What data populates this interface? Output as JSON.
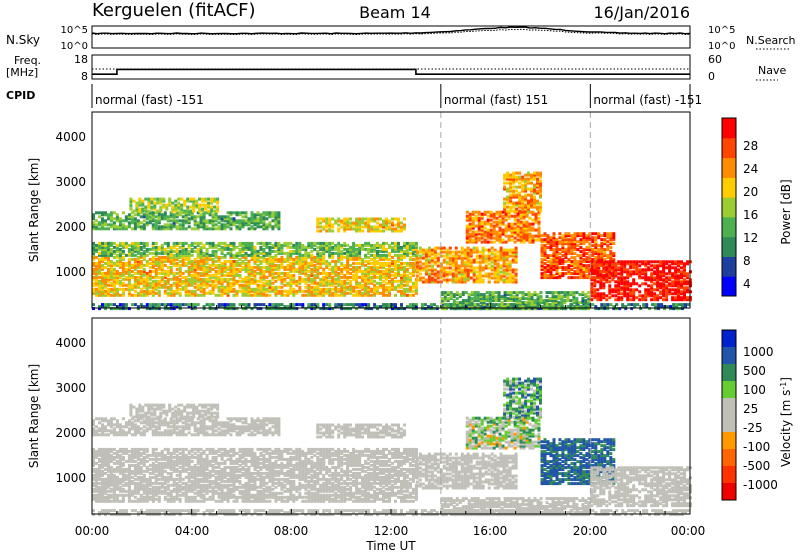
{
  "header": {
    "station": "Kerguelen (fitACF)",
    "beam": "Beam 14",
    "date": "16/Jan/2016"
  },
  "sky_panel": {
    "left_label": "N.Sky",
    "left_ticks": [
      "10^5",
      "10^0"
    ],
    "right_ticks": [
      "10^5",
      "10^0"
    ],
    "right_label": "N.Search"
  },
  "freq_panel": {
    "left_label_1": "Freq.",
    "left_label_2": "[MHz]",
    "left_ticks": [
      "18",
      "8"
    ],
    "right_ticks": [
      "60",
      "0"
    ],
    "right_label": "Nave"
  },
  "cpid_panel": {
    "label": "CPID",
    "segments": [
      {
        "label": "normal (fast) -151",
        "start_h": 0,
        "end_h": 14
      },
      {
        "label": "normal (fast) 151",
        "start_h": 14,
        "end_h": 20
      },
      {
        "label": "normal (fast) -151",
        "start_h": 20,
        "end_h": 24
      }
    ]
  },
  "power_panel": {
    "ylabel": "Slant Range [km]",
    "yticks": [
      "4000",
      "3000",
      "2000",
      "1000"
    ],
    "colorbar_label": "Power [dB]",
    "colorbar_ticks": [
      "28",
      "24",
      "20",
      "16",
      "12",
      "8",
      "4"
    ]
  },
  "velocity_panel": {
    "ylabel": "Slant Range [km]",
    "yticks": [
      "4000",
      "3000",
      "2000",
      "1000"
    ],
    "colorbar_label": "Velocity [m s",
    "colorbar_label_sup": "-1",
    "colorbar_label_end": "]",
    "colorbar_ticks": [
      "1000",
      "500",
      "100",
      "25",
      "-25",
      "-100",
      "-500",
      "-1000"
    ]
  },
  "x_axis": {
    "label": "Time UT",
    "ticks": [
      "00:00",
      "04:00",
      "08:00",
      "12:00",
      "16:00",
      "20:00",
      "00:00"
    ]
  },
  "colors": {
    "power_scale": [
      "#0000ff",
      "#1f3f9f",
      "#2e8b57",
      "#4caf50",
      "#9acd32",
      "#ffcc00",
      "#ff8c00",
      "#ff4500",
      "#ff0000"
    ],
    "velocity_scale": [
      "#0022cc",
      "#2255aa",
      "#2e8b57",
      "#66cc33",
      "#c0c0b8",
      "#c0c0b8",
      "#ff9900",
      "#ff6600",
      "#ff3300",
      "#ee0000"
    ]
  },
  "chart_data": {
    "type": "heatmap",
    "x_range_hours": [
      0,
      24
    ],
    "y_range_km": [
      180,
      4600
    ],
    "power_range_db": [
      0,
      32
    ],
    "velocity_range_ms": [
      -1200,
      1200
    ],
    "freq_mhz": [
      {
        "start_h": 0,
        "end_h": 1,
        "value": 10
      },
      {
        "start_h": 1,
        "end_h": 13,
        "value": 12
      },
      {
        "start_h": 13,
        "end_h": 24,
        "value": 10
      }
    ],
    "nave_dotted": 25,
    "scatter_bands": [
      {
        "t": [
          0,
          24
        ],
        "range_km": [
          200,
          300
        ],
        "power": 8,
        "vel": 0
      },
      {
        "t": [
          0,
          13
        ],
        "range_km": [
          500,
          1400
        ],
        "power": 20,
        "vel": 0
      },
      {
        "t": [
          0,
          13
        ],
        "range_km": [
          1400,
          1700
        ],
        "power": 14,
        "vel": 0
      },
      {
        "t": [
          0,
          7.5
        ],
        "range_km": [
          2000,
          2400
        ],
        "power": 12,
        "vel": 0
      },
      {
        "t": [
          1.5,
          5
        ],
        "range_km": [
          2400,
          2700
        ],
        "power": 16,
        "vel": 0
      },
      {
        "t": [
          9,
          12.5
        ],
        "range_km": [
          1950,
          2250
        ],
        "power": 20,
        "vel": 0
      },
      {
        "t": [
          13,
          17
        ],
        "range_km": [
          800,
          1600
        ],
        "power": 22,
        "vel": 0
      },
      {
        "t": [
          15,
          18
        ],
        "range_km": [
          1700,
          2400
        ],
        "power": 24,
        "vel": 20
      },
      {
        "t": [
          16.5,
          18
        ],
        "range_km": [
          2400,
          3300
        ],
        "power": 22,
        "vel": 60
      },
      {
        "t": [
          18,
          21
        ],
        "range_km": [
          900,
          1900
        ],
        "power": 26,
        "vel": 120
      },
      {
        "t": [
          20,
          24
        ],
        "range_km": [
          400,
          1300
        ],
        "power": 30,
        "vel": 0
      },
      {
        "t": [
          14,
          20
        ],
        "range_km": [
          200,
          600
        ],
        "power": 12,
        "vel": 0
      }
    ]
  }
}
